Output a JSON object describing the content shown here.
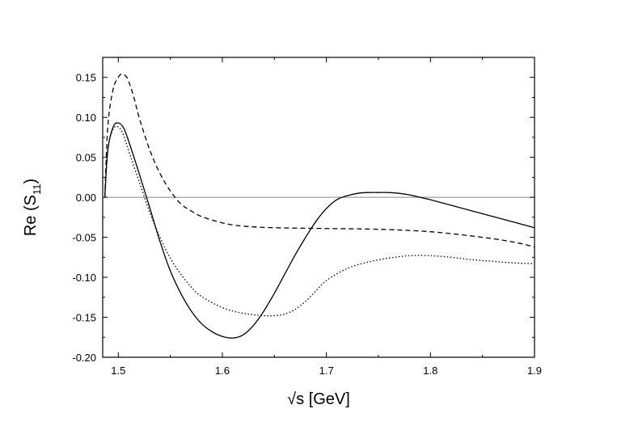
{
  "chart_data": {
    "type": "line",
    "xlabel": "√s [GeV]",
    "ylabel_main": "Re (S",
    "ylabel_sub": "11",
    "ylabel_close": ")",
    "xlim": [
      1.485,
      1.9
    ],
    "ylim": [
      -0.2,
      0.175
    ],
    "x_ticks": [
      1.5,
      1.6,
      1.7,
      1.8,
      1.9
    ],
    "x_tick_labels": [
      "1.5",
      "1.6",
      "1.7",
      "1.8",
      "1.9"
    ],
    "y_ticks": [
      -0.2,
      -0.15,
      -0.1,
      -0.05,
      0.0,
      0.05,
      0.1,
      0.15
    ],
    "y_tick_labels": [
      "-0.20",
      "-0.15",
      "-0.10",
      "-0.05",
      "0.00",
      "0.05",
      "0.10",
      "0.15"
    ],
    "reference_line_y": 0,
    "grid": false,
    "legend": "none",
    "series": [
      {
        "style": "solid",
        "x": [
          1.487,
          1.49,
          1.495,
          1.5,
          1.505,
          1.51,
          1.52,
          1.53,
          1.54,
          1.55,
          1.56,
          1.57,
          1.58,
          1.59,
          1.6,
          1.61,
          1.62,
          1.63,
          1.64,
          1.65,
          1.66,
          1.67,
          1.68,
          1.69,
          1.7,
          1.71,
          1.72,
          1.73,
          1.74,
          1.75,
          1.76,
          1.77,
          1.78,
          1.79,
          1.8,
          1.82,
          1.84,
          1.86,
          1.88,
          1.9
        ],
        "y": [
          0.0,
          0.06,
          0.088,
          0.093,
          0.087,
          0.07,
          0.03,
          -0.012,
          -0.055,
          -0.092,
          -0.12,
          -0.142,
          -0.158,
          -0.168,
          -0.174,
          -0.176,
          -0.172,
          -0.16,
          -0.142,
          -0.12,
          -0.096,
          -0.072,
          -0.05,
          -0.03,
          -0.014,
          -0.003,
          0.002,
          0.005,
          0.006,
          0.006,
          0.006,
          0.005,
          0.003,
          0.0,
          -0.003,
          -0.01,
          -0.017,
          -0.024,
          -0.031,
          -0.038
        ]
      },
      {
        "style": "dashed",
        "x": [
          1.487,
          1.49,
          1.495,
          1.5,
          1.503,
          1.507,
          1.51,
          1.515,
          1.52,
          1.53,
          1.54,
          1.55,
          1.56,
          1.57,
          1.58,
          1.6,
          1.62,
          1.65,
          1.7,
          1.75,
          1.8,
          1.85,
          1.88,
          1.9
        ],
        "y": [
          0.0,
          0.09,
          0.135,
          0.15,
          0.154,
          0.152,
          0.145,
          0.125,
          0.1,
          0.06,
          0.03,
          0.008,
          -0.008,
          -0.017,
          -0.024,
          -0.032,
          -0.036,
          -0.038,
          -0.039,
          -0.04,
          -0.043,
          -0.05,
          -0.056,
          -0.062
        ]
      },
      {
        "style": "dotted",
        "x": [
          1.487,
          1.49,
          1.495,
          1.5,
          1.505,
          1.51,
          1.52,
          1.53,
          1.54,
          1.55,
          1.56,
          1.57,
          1.58,
          1.6,
          1.62,
          1.64,
          1.65,
          1.66,
          1.67,
          1.68,
          1.69,
          1.7,
          1.72,
          1.74,
          1.76,
          1.78,
          1.8,
          1.82,
          1.84,
          1.86,
          1.88,
          1.9
        ],
        "y": [
          0.0,
          0.06,
          0.085,
          0.088,
          0.078,
          0.058,
          0.02,
          -0.018,
          -0.05,
          -0.076,
          -0.096,
          -0.112,
          -0.124,
          -0.138,
          -0.145,
          -0.148,
          -0.148,
          -0.146,
          -0.14,
          -0.13,
          -0.117,
          -0.104,
          -0.089,
          -0.081,
          -0.076,
          -0.073,
          -0.073,
          -0.075,
          -0.078,
          -0.08,
          -0.082,
          -0.083
        ]
      }
    ]
  }
}
